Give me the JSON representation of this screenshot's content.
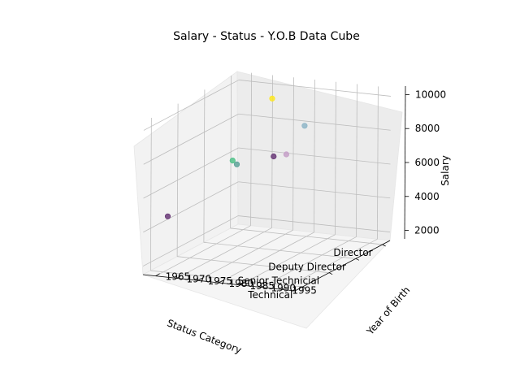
{
  "chart_data": {
    "type": "scatter",
    "projection": "3d",
    "title": "Salary - Status - Y.O.B Data Cube",
    "xlabel": "Status Category",
    "ylabel": "Year of Birth",
    "zlabel": "Salary",
    "x_categories": [
      "Technical",
      "Senior Technicial",
      "Deputy Director",
      "Director"
    ],
    "y_ticks": [
      1965,
      1970,
      1975,
      1980,
      1985,
      1990,
      1995
    ],
    "z_ticks": [
      2000,
      4000,
      6000,
      8000,
      10000
    ],
    "ylim": [
      1962,
      1998
    ],
    "zlim": [
      1500,
      10500
    ],
    "colormap": "viridis",
    "grid": true,
    "points": [
      {
        "x": "Technical",
        "y": 1994,
        "z": 9200,
        "color": "#c6a0c8"
      },
      {
        "x": "Technical",
        "y": 1991,
        "z": 9000,
        "color": "#6a3a78"
      },
      {
        "x": "Technical",
        "y": 1966,
        "z": 4800,
        "color": "#6a3a78"
      },
      {
        "x": "Senior Technicial",
        "y": 1992,
        "z": 10000,
        "color": "#8fb6c8"
      },
      {
        "x": "Senior Technicial",
        "y": 1975,
        "z": 7500,
        "color": "#52c28a"
      },
      {
        "x": "Senior Technicial",
        "y": 1976,
        "z": 7300,
        "color": "#5fa39a"
      },
      {
        "x": "Deputy Director",
        "y": 1978,
        "z": 10400,
        "color": "#fde725"
      }
    ]
  }
}
